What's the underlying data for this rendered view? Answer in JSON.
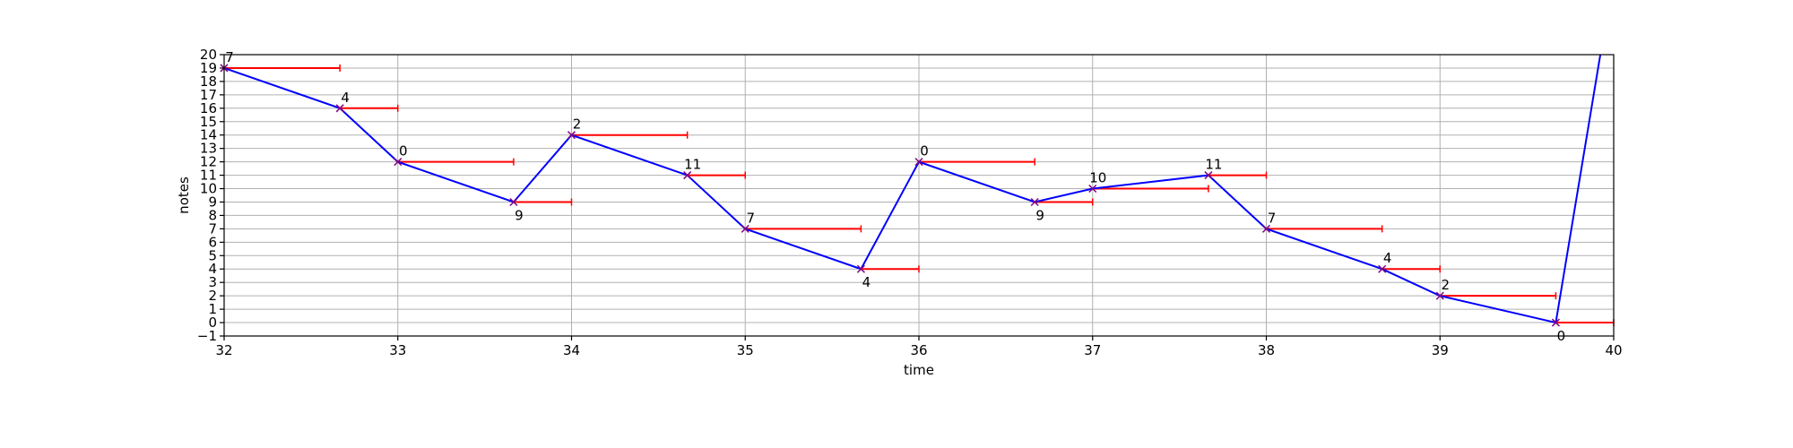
{
  "chart_data": {
    "type": "line",
    "xlabel": "time",
    "ylabel": "notes",
    "xlim": [
      32,
      40
    ],
    "ylim": [
      -1,
      20
    ],
    "grid": true,
    "xticks": [
      32,
      33,
      34,
      35,
      36,
      37,
      38,
      39,
      40
    ],
    "yticks": [
      -1,
      0,
      1,
      2,
      3,
      4,
      5,
      6,
      7,
      8,
      9,
      10,
      11,
      12,
      13,
      14,
      15,
      16,
      17,
      18,
      19,
      20
    ],
    "colors": {
      "line": "#0000ff",
      "duration": "#ff0000",
      "marker": "#800080"
    },
    "points": [
      {
        "x": 32.0,
        "y": 19,
        "label": "7",
        "dur": 0.6667
      },
      {
        "x": 32.6667,
        "y": 16,
        "label": "4",
        "dur": 0.3333
      },
      {
        "x": 33.0,
        "y": 12,
        "label": "0",
        "dur": 0.6667
      },
      {
        "x": 33.6667,
        "y": 9,
        "label": "9",
        "dur": 0.3333
      },
      {
        "x": 34.0,
        "y": 14,
        "label": "2",
        "dur": 0.6667
      },
      {
        "x": 34.6667,
        "y": 11,
        "label": "11",
        "dur": 0.3333
      },
      {
        "x": 35.0,
        "y": 7,
        "label": "7",
        "dur": 0.6667
      },
      {
        "x": 35.6667,
        "y": 4,
        "label": "4",
        "dur": 0.3333
      },
      {
        "x": 36.0,
        "y": 12,
        "label": "0",
        "dur": 0.6667
      },
      {
        "x": 36.6667,
        "y": 9,
        "label": "9",
        "dur": 0.3333
      },
      {
        "x": 37.0,
        "y": 10,
        "label": "10",
        "dur": 0.6667
      },
      {
        "x": 37.6667,
        "y": 11,
        "label": "11",
        "dur": 0.3333
      },
      {
        "x": 38.0,
        "y": 7,
        "label": "7",
        "dur": 0.6667
      },
      {
        "x": 38.6667,
        "y": 4,
        "label": "4",
        "dur": 0.3333
      },
      {
        "x": 39.0,
        "y": 2,
        "label": "2",
        "dur": 0.6667
      },
      {
        "x": 39.6667,
        "y": 0,
        "label": "0",
        "dur": 0.3333
      }
    ],
    "line_tail": {
      "x": 40.0,
      "y": 26
    }
  }
}
